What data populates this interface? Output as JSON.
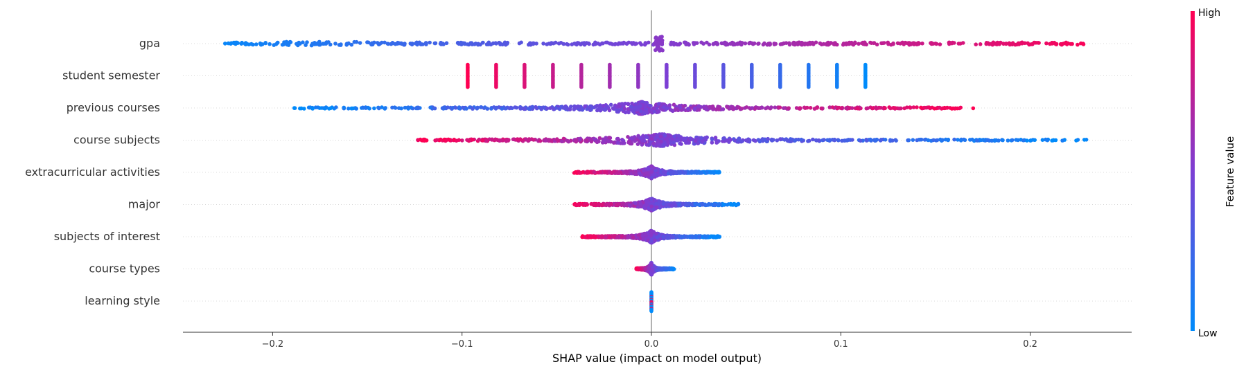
{
  "chart_data": {
    "type": "scatter",
    "subtype": "shap-beeswarm",
    "title": "",
    "xlabel": "SHAP value (impact on model output)",
    "xlim": [
      -0.25,
      0.255
    ],
    "xticks": [
      -0.2,
      -0.1,
      0.0,
      0.1,
      0.2
    ],
    "xtick_labels": [
      "−0.2",
      "−0.1",
      "0.0",
      "0.1",
      "0.2"
    ],
    "colorbar": {
      "title": "Feature value",
      "high_label": "High",
      "low_label": "Low",
      "low_color": "#008bfb",
      "high_color": "#ff0052"
    },
    "features": [
      {
        "name": "gpa",
        "min": -0.226,
        "max": 0.23,
        "pattern": "gpa"
      },
      {
        "name": "student semester",
        "values": [
          -0.097,
          -0.082,
          -0.067,
          -0.052,
          -0.037,
          -0.022,
          -0.007,
          0.008,
          0.023,
          0.038,
          0.053,
          0.068,
          0.083,
          0.098,
          0.113
        ],
        "pattern": "discrete"
      },
      {
        "name": "previous courses",
        "min": -0.19,
        "max": 0.172,
        "center": -0.005,
        "pattern": "positive"
      },
      {
        "name": "course subjects",
        "min": -0.126,
        "max": 0.23,
        "center": 0.005,
        "pattern": "negative"
      },
      {
        "name": "extracurricular activities",
        "min": -0.041,
        "max": 0.036,
        "center": 0.0,
        "pattern": "negative"
      },
      {
        "name": "major",
        "min": -0.041,
        "max": 0.046,
        "center": 0.0,
        "pattern": "negative"
      },
      {
        "name": "subjects of interest",
        "min": -0.037,
        "max": 0.036,
        "center": 0.0,
        "pattern": "negative"
      },
      {
        "name": "course types",
        "min": -0.008,
        "max": 0.012,
        "center": 0.0,
        "pattern": "negative"
      },
      {
        "name": "learning style",
        "min": -0.001,
        "max": 0.001,
        "center": 0.0,
        "pattern": "mixed"
      }
    ]
  }
}
